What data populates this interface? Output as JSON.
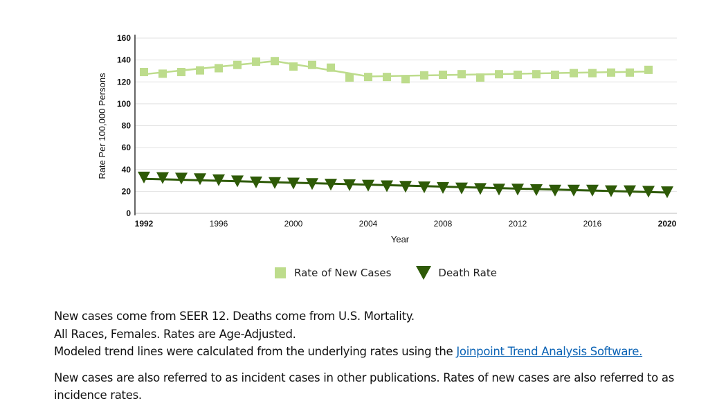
{
  "chart_data": {
    "type": "line",
    "ylabel": "Rate Per 100,000 Persons",
    "xlabel": "Year",
    "ylim": [
      0,
      160
    ],
    "yticks": [
      "0",
      "20",
      "40",
      "60",
      "80",
      "100",
      "120",
      "140",
      "160"
    ],
    "xticks": [
      1992,
      1996,
      2000,
      2004,
      2008,
      2012,
      2016,
      2020
    ],
    "grid": true,
    "legend_position": "bottom",
    "series": [
      {
        "name": "Rate of New Cases",
        "color": "#bddc8c",
        "marker": "square",
        "x": [
          1992,
          1993,
          1994,
          1995,
          1996,
          1997,
          1998,
          1999,
          2000,
          2001,
          2002,
          2003,
          2004,
          2005,
          2006,
          2007,
          2008,
          2009,
          2010,
          2011,
          2012,
          2013,
          2014,
          2015,
          2016,
          2017,
          2018,
          2019
        ],
        "values": [
          129,
          127.5,
          129,
          130.5,
          132.5,
          135.5,
          138.5,
          139,
          134,
          135.5,
          133,
          124,
          124.5,
          124.5,
          122.5,
          126,
          126.5,
          127,
          124,
          127,
          126.5,
          127,
          126.5,
          128,
          128,
          128.5,
          128.5,
          131
        ],
        "trend_x": [
          1992,
          1999,
          2004,
          2019
        ],
        "trend": [
          127,
          139,
          125,
          129.5
        ]
      },
      {
        "name": "Death Rate",
        "color": "#2e5a07",
        "marker": "triangle-down",
        "x": [
          1992,
          1993,
          1994,
          1995,
          1996,
          1997,
          1998,
          1999,
          2000,
          2001,
          2002,
          2003,
          2004,
          2005,
          2006,
          2007,
          2008,
          2009,
          2010,
          2011,
          2012,
          2013,
          2014,
          2015,
          2016,
          2017,
          2018,
          2019,
          2020
        ],
        "values": [
          33,
          32.5,
          32,
          31.5,
          30.5,
          29.5,
          28.5,
          28,
          27.5,
          27,
          26.5,
          26,
          25.5,
          25,
          24.5,
          24,
          23.5,
          23,
          22.5,
          22,
          22,
          21.5,
          21,
          21,
          21,
          20.5,
          20.5,
          20,
          19.5
        ],
        "trend_x": [
          1992,
          2020
        ],
        "trend": [
          31.5,
          19
        ]
      }
    ]
  },
  "notes": {
    "line1": "New cases come from SEER 12. Deaths come from U.S. Mortality.",
    "line2": "All Races, Females. Rates are Age-Adjusted.",
    "line3": "Modeled trend lines were calculated from the underlying rates using the ",
    "link": "Joinpoint Trend Analysis Software.",
    "para2": "New cases are also referred to as incident cases in other publications. Rates of new cases are also referred to as incidence rates."
  }
}
